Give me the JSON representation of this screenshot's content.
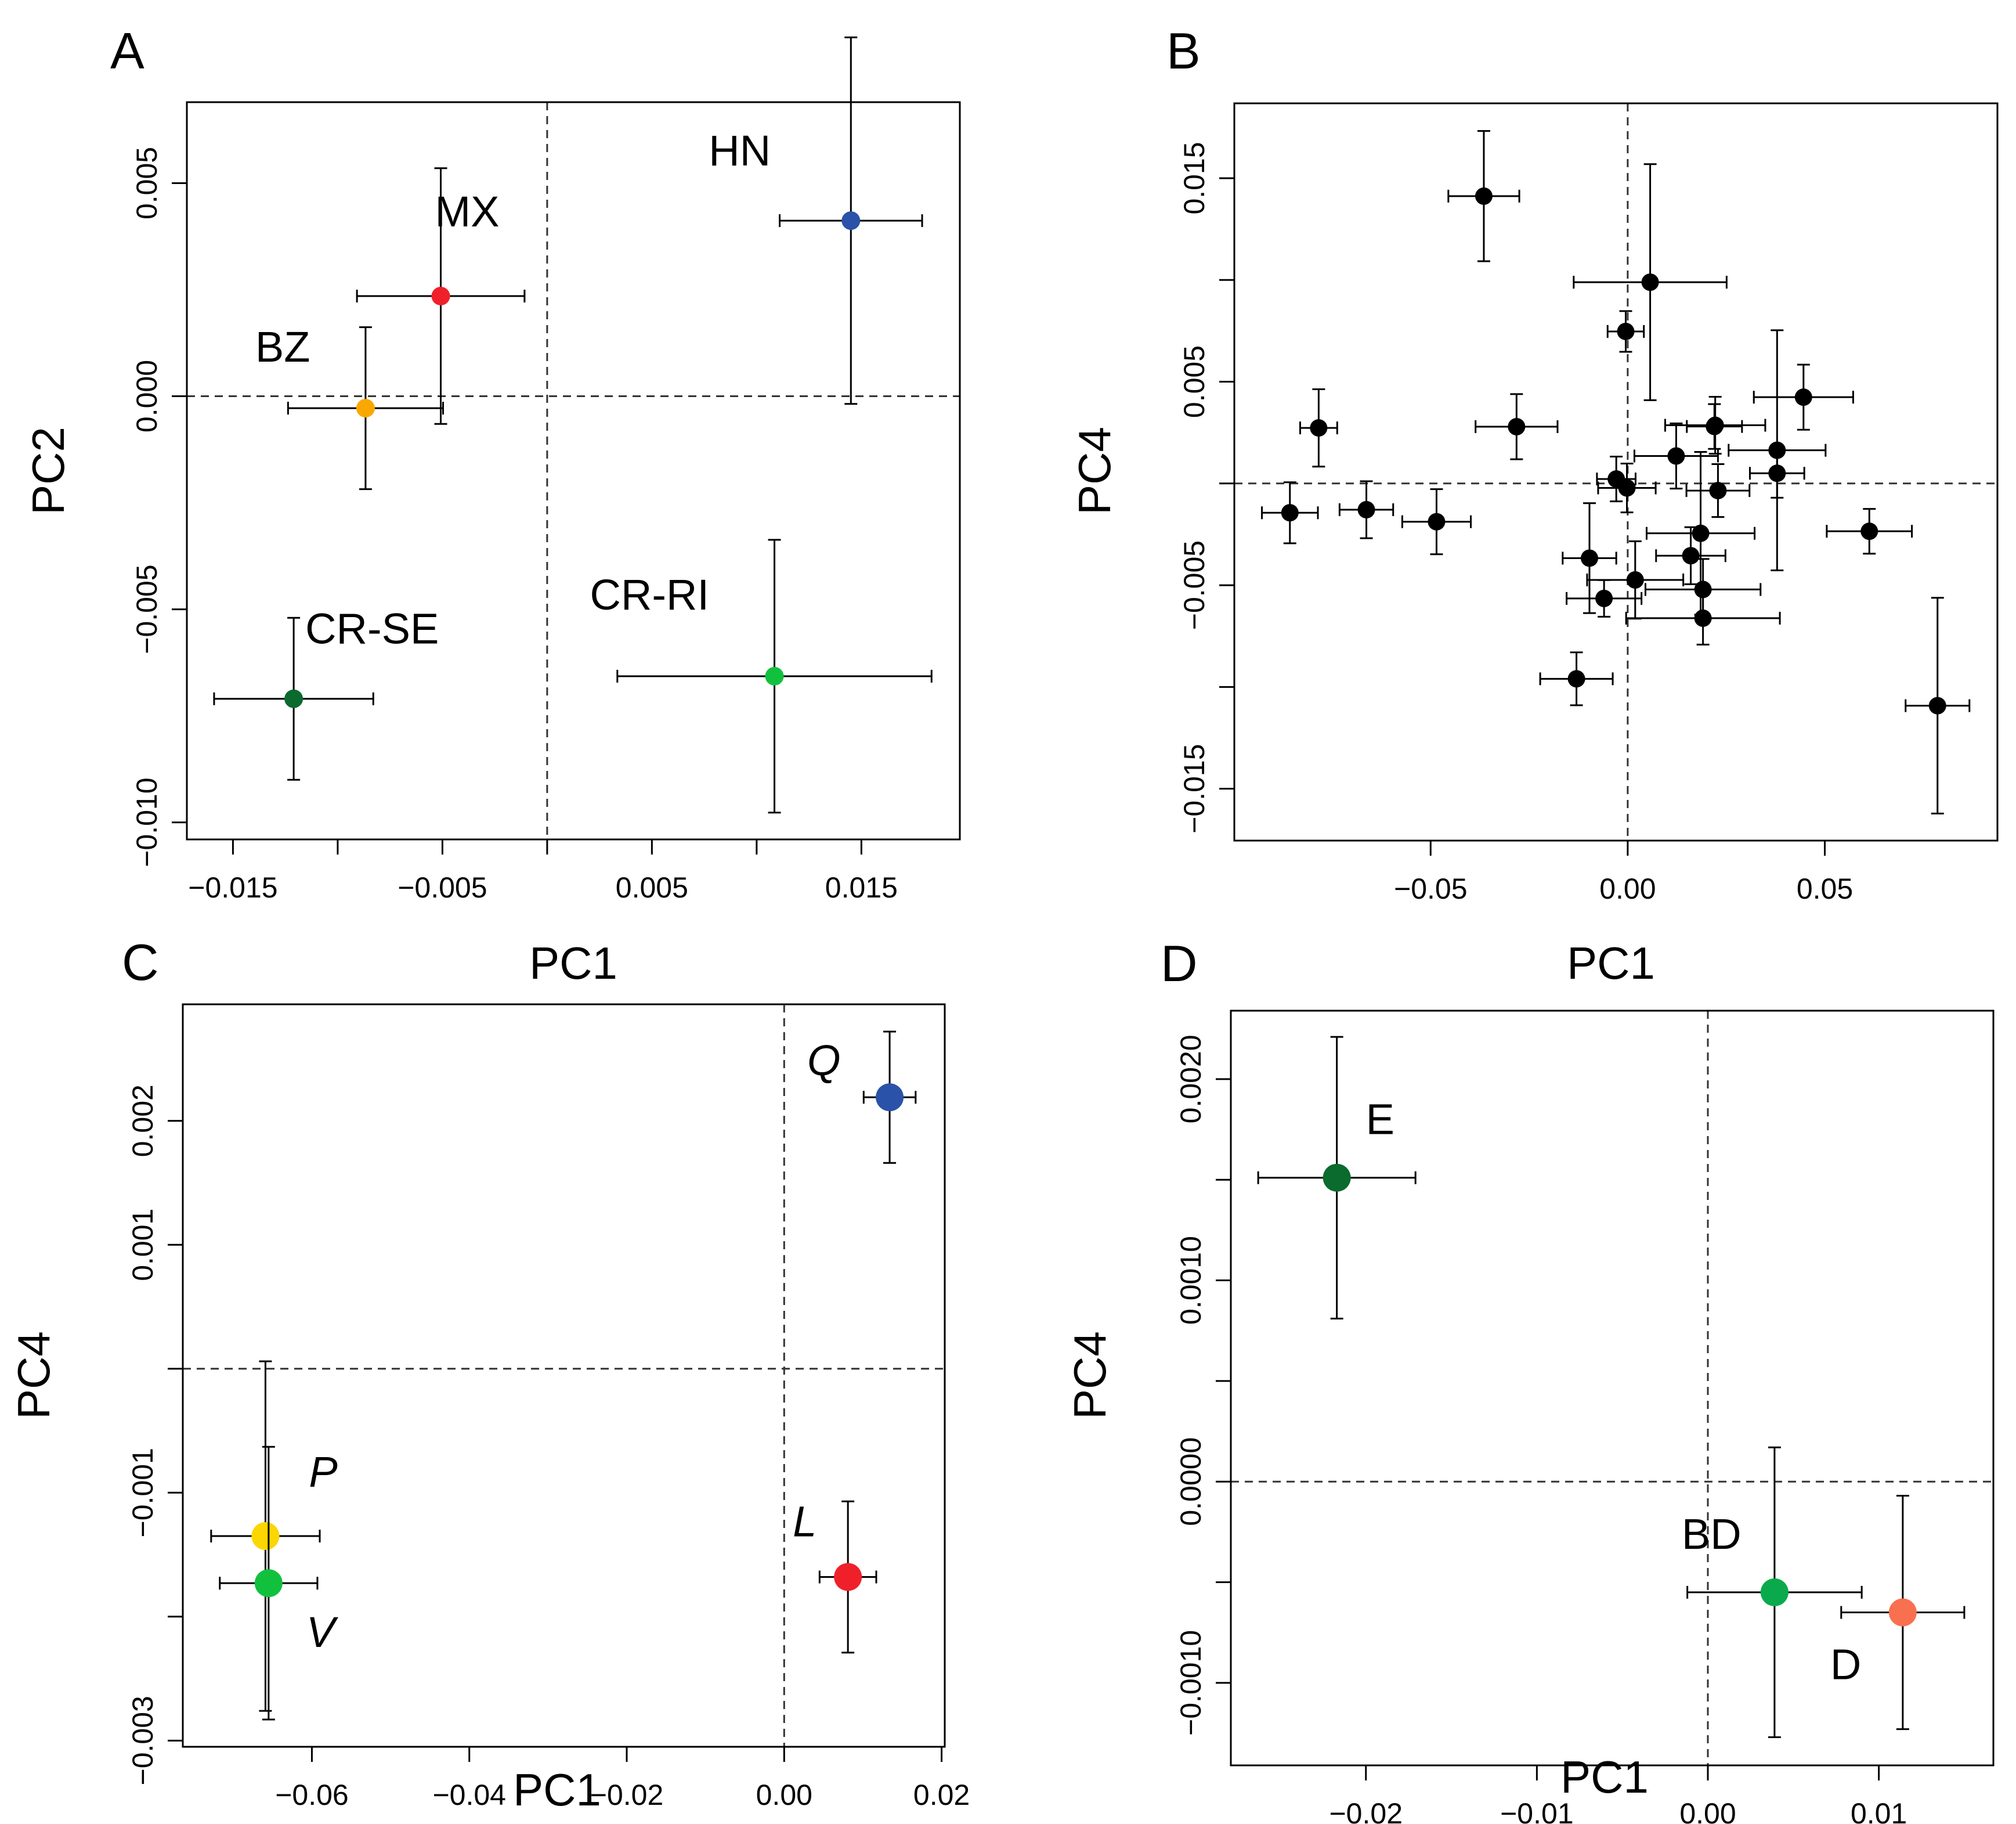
{
  "chart_data": [
    {
      "panel": "A",
      "type": "scatter",
      "title": "",
      "xlabel": "PC1",
      "ylabel": "PC2",
      "xlim": [
        -0.0172,
        0.0197
      ],
      "ylim": [
        -0.0104,
        0.0069
      ],
      "xticks": [
        -0.015,
        -0.01,
        -0.005,
        0,
        0.005,
        0.01,
        0.015
      ],
      "xtick_labels": [
        "−0.015",
        "",
        "−0.005",
        "",
        "0.005",
        "",
        "0.015"
      ],
      "yticks": [
        0.005,
        0,
        -0.005,
        -0.01
      ],
      "ytick_labels": [
        "0.005",
        "0.000",
        "−0.005",
        "−0.010"
      ],
      "reference_lines": {
        "x": 0,
        "y": 0,
        "style": "dashed"
      },
      "grid": false,
      "legend": "none",
      "points": [
        {
          "label": "HN",
          "x": 0.0145,
          "y": 0.00412,
          "xerr": 0.0034,
          "yerr": 0.0043,
          "color": "#2a52a8",
          "italic": false
        },
        {
          "label": "MX",
          "x": -0.00508,
          "y": 0.00235,
          "xerr": 0.004,
          "yerr": 0.003,
          "color": "#f0202a",
          "italic": false
        },
        {
          "label": "BZ",
          "x": -0.00867,
          "y": -0.00028,
          "xerr": 0.0037,
          "yerr": 0.0019,
          "color": "#f9a800",
          "italic": false
        },
        {
          "label": "CR-SE",
          "x": -0.0121,
          "y": -0.0071,
          "xerr": 0.0038,
          "yerr": 0.0019,
          "color": "#0b6a2e",
          "italic": false
        },
        {
          "label": "CR-RI",
          "x": 0.01085,
          "y": -0.00657,
          "xerr": 0.0075,
          "yerr": 0.0032,
          "color": "#11c13d",
          "italic": false
        }
      ]
    },
    {
      "panel": "B",
      "type": "scatter",
      "title": "",
      "xlabel": "PC1",
      "ylabel": "PC4",
      "xlim": [
        -0.0998,
        0.0938
      ],
      "ylim": [
        -0.01755,
        0.01868
      ],
      "xticks": [
        -0.05,
        0,
        0.05
      ],
      "xtick_labels": [
        "−0.05",
        "0.00",
        "0.05"
      ],
      "yticks": [
        0.015,
        0.01,
        0.005,
        0,
        -0.005,
        -0.01,
        -0.015
      ],
      "ytick_labels": [
        "0.015",
        "",
        "0.005",
        "",
        "−0.005",
        "",
        "−0.015"
      ],
      "reference_lines": {
        "x": 0,
        "y": 0,
        "style": "dashed"
      },
      "grid": false,
      "legend": "none",
      "points": [
        {
          "x": -0.0857,
          "y": -0.00144,
          "xerr": 0.0071,
          "yerr": 0.0015,
          "color": "#000000"
        },
        {
          "x": -0.0784,
          "y": 0.00273,
          "xerr": 0.0047,
          "yerr": 0.0019,
          "color": "#000000"
        },
        {
          "x": -0.0663,
          "y": -0.00129,
          "xerr": 0.0068,
          "yerr": 0.0014,
          "color": "#000000"
        },
        {
          "x": -0.0485,
          "y": -0.00188,
          "xerr": 0.0087,
          "yerr": 0.0016,
          "color": "#000000"
        },
        {
          "x": -0.0365,
          "y": 0.01412,
          "xerr": 0.009,
          "yerr": 0.0032,
          "color": "#000000"
        },
        {
          "x": -0.0282,
          "y": 0.00279,
          "xerr": 0.0104,
          "yerr": 0.0016,
          "color": "#000000"
        },
        {
          "x": -0.013,
          "y": -0.0096,
          "xerr": 0.0092,
          "yerr": 0.0013,
          "color": "#000000"
        },
        {
          "x": -0.0097,
          "y": -0.00367,
          "xerr": 0.0068,
          "yerr": 0.0027,
          "color": "#000000"
        },
        {
          "x": -0.006,
          "y": -0.00565,
          "xerr": 0.0095,
          "yerr": 0.0009,
          "color": "#000000"
        },
        {
          "x": -0.0029,
          "y": 0.00022,
          "xerr": 0.0049,
          "yerr": 0.0011,
          "color": "#000000"
        },
        {
          "x": -0.0005,
          "y": 0.00747,
          "xerr": 0.0046,
          "yerr": 0.001,
          "color": "#000000"
        },
        {
          "x": -0.0002,
          "y": -0.00022,
          "xerr": 0.0073,
          "yerr": 0.0012,
          "color": "#000000"
        },
        {
          "x": 0.0019,
          "y": -0.00474,
          "xerr": 0.0122,
          "yerr": 0.0019,
          "color": "#000000"
        },
        {
          "x": 0.0057,
          "y": 0.00989,
          "xerr": 0.0194,
          "yerr": 0.0058,
          "color": "#000000"
        },
        {
          "x": 0.0123,
          "y": 0.00135,
          "xerr": 0.0106,
          "yerr": 0.0016,
          "color": "#000000"
        },
        {
          "x": 0.016,
          "y": -0.00355,
          "xerr": 0.0088,
          "yerr": 0.0014,
          "color": "#000000"
        },
        {
          "x": 0.0185,
          "y": -0.00245,
          "xerr": 0.0137,
          "yerr": 0.004,
          "color": "#000000"
        },
        {
          "x": 0.0191,
          "y": -0.00521,
          "xerr": 0.0146,
          "yerr": 0.0015,
          "color": "#000000"
        },
        {
          "x": 0.0191,
          "y": -0.00662,
          "xerr": 0.0195,
          "yerr": 0.0013,
          "color": "#000000"
        },
        {
          "x": 0.0222,
          "y": 0.00286,
          "xerr": 0.0127,
          "yerr": 0.0014,
          "color": "#000000"
        },
        {
          "x": 0.022,
          "y": 0.0028,
          "xerr": 0.007,
          "yerr": 0.0011,
          "color": "#000000"
        },
        {
          "x": 0.0229,
          "y": -0.00035,
          "xerr": 0.008,
          "yerr": 0.0013,
          "color": "#000000"
        },
        {
          "x": 0.0379,
          "y": 0.00163,
          "xerr": 0.0123,
          "yerr": 0.0059,
          "color": "#000000"
        },
        {
          "x": 0.0379,
          "y": 0.0005,
          "xerr": 0.0069,
          "yerr": 0.0012,
          "color": "#000000"
        },
        {
          "x": 0.0446,
          "y": 0.00424,
          "xerr": 0.0126,
          "yerr": 0.0016,
          "color": "#000000"
        },
        {
          "x": 0.0613,
          "y": -0.00235,
          "xerr": 0.0108,
          "yerr": 0.0011,
          "color": "#000000"
        },
        {
          "x": 0.0786,
          "y": -0.01092,
          "xerr": 0.0081,
          "yerr": 0.0053,
          "color": "#000000"
        }
      ]
    },
    {
      "panel": "C",
      "type": "scatter",
      "title": "",
      "xlabel": "PC1",
      "ylabel": "PC4",
      "xlim": [
        -0.0764,
        0.0204
      ],
      "ylim": [
        -0.00305,
        0.00294
      ],
      "xticks": [
        -0.06,
        -0.04,
        -0.02,
        0,
        0.02
      ],
      "xtick_labels": [
        "−0.06",
        "−0.04",
        "−0.02",
        "0.00",
        "0.02"
      ],
      "yticks": [
        0.002,
        0.001,
        0,
        -0.001,
        -0.002,
        -0.003
      ],
      "ytick_labels": [
        "0.002",
        "0.001",
        "",
        "−0.001",
        "",
        "−0.003"
      ],
      "reference_lines": {
        "x": 0,
        "y": 0,
        "style": "dashed"
      },
      "grid": false,
      "legend": "none",
      "points": [
        {
          "label": "Q",
          "x": 0.0134,
          "y": 0.00219,
          "xerr": 0.0033,
          "yerr": 0.00053,
          "color": "#2a52a8",
          "italic": true
        },
        {
          "label": "P",
          "x": -0.0659,
          "y": -0.00135,
          "xerr": 0.0069,
          "yerr": 0.00141,
          "color": "#fcd600",
          "italic": true
        },
        {
          "label": "V",
          "x": -0.0655,
          "y": -0.00173,
          "xerr": 0.0062,
          "yerr": 0.0011,
          "color": "#11c13d",
          "italic": true
        },
        {
          "label": "L",
          "x": 0.0081,
          "y": -0.00168,
          "xerr": 0.0036,
          "yerr": 0.00061,
          "color": "#f0202a",
          "italic": true
        }
      ]
    },
    {
      "panel": "D",
      "type": "scatter",
      "title": "",
      "xlabel": "PC1",
      "ylabel": "PC4",
      "xlim": [
        -0.0279,
        0.0167
      ],
      "ylim": [
        -0.00141,
        0.00234
      ],
      "xticks": [
        -0.02,
        -0.01,
        0,
        0.01
      ],
      "xtick_labels": [
        "−0.02",
        "−0.01",
        "0.00",
        "0.01"
      ],
      "yticks": [
        0.002,
        0.0015,
        0.001,
        0.0005,
        0,
        -0.0005,
        -0.001
      ],
      "ytick_labels": [
        "0.0020",
        "",
        "0.0010",
        "",
        "0.0000",
        "",
        "−0.0010"
      ],
      "reference_lines": {
        "x": 0,
        "y": 0,
        "style": "dashed"
      },
      "grid": false,
      "legend": "none",
      "points": [
        {
          "label": "E",
          "x": -0.0217,
          "y": 0.00151,
          "xerr": 0.0046,
          "yerr": 0.0007,
          "color": "#0b6a2e",
          "italic": false
        },
        {
          "label": "BD",
          "x": 0.0039,
          "y": -0.00055,
          "xerr": 0.0051,
          "yerr": 0.00072,
          "color": "#0aaa4c",
          "italic": false
        },
        {
          "label": "D",
          "x": 0.0114,
          "y": -0.00065,
          "xerr": 0.0036,
          "yerr": 0.00058,
          "color": "#f8704f",
          "italic": false
        }
      ]
    }
  ]
}
